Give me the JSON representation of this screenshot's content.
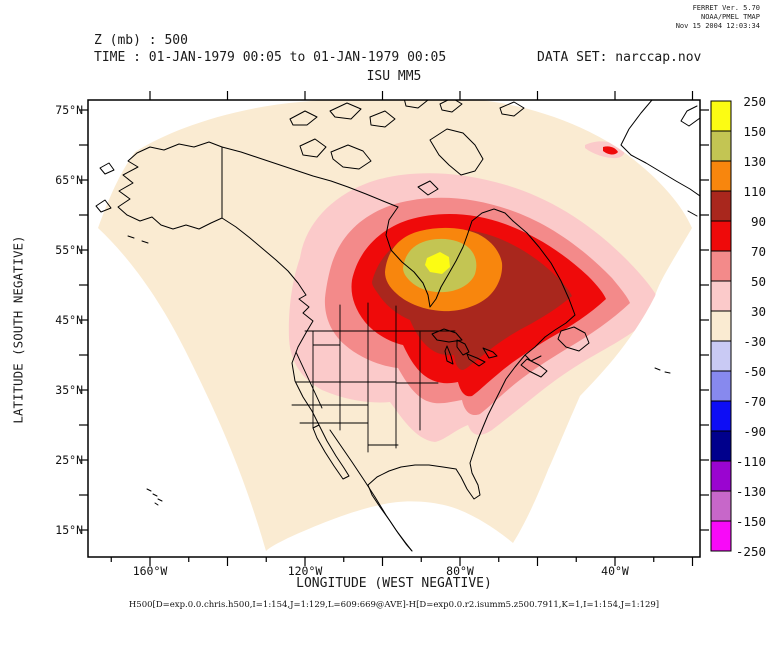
{
  "credits": {
    "line1": "FERRET Ver. 5.70",
    "line2": "NOAA/PMEL TMAP",
    "line3": "Nov 15 2004 12:03:34"
  },
  "header": {
    "variable": "Z (mb) : 500",
    "time_range": "TIME : 01-JAN-1979 00:05 to 01-JAN-1979 00:05",
    "dataset": "DATA SET: narccap.nov",
    "title": "ISU MM5"
  },
  "axes": {
    "y_title": "LATITUDE (SOUTH NEGATIVE)",
    "x_title": "LONGITUDE (WEST NEGATIVE)",
    "y_tick_labels": [
      "75°N",
      "65°N",
      "55°N",
      "45°N",
      "35°N",
      "25°N",
      "15°N"
    ],
    "x_tick_labels": [
      "160°W",
      "120°W",
      "80°W",
      "40°W"
    ]
  },
  "colorbar": {
    "labels": [
      "250",
      "150",
      "130",
      "110",
      "90",
      "70",
      "50",
      "30",
      "-30",
      "-50",
      "-70",
      "-90",
      "-110",
      "-130",
      "-150",
      "-250"
    ],
    "colors": [
      "#FCFC13",
      "#C3C553",
      "#F8860D",
      "#A9271D",
      "#EF0A0A",
      "#F38A8A",
      "#FBCACA",
      "#FAEBD2",
      "#C9CAF4",
      "#8789EE",
      "#0D0DF5",
      "#00008C",
      "#9A05D0",
      "#C767C9",
      "#F80AF8"
    ]
  },
  "footer": {
    "expression": "H500[D=exp.0.0.chris.h500,I=1:154,J=1:129,L=609:669@AVE]-H[D=exp0.0.r2.isumm5.z500.7911,K=1,I=1:154,J=1:129]"
  },
  "chart_data": {
    "type": "heatmap",
    "subtype": "filled-contour map over North America",
    "title": "ISU MM5",
    "variable": "Z (mb) : 500",
    "time": "01-JAN-1979 00:05 to 01-JAN-1979 00:05",
    "dataset": "narccap.nov",
    "xlabel": "LONGITUDE (WEST NEGATIVE)",
    "ylabel": "LATITUDE (SOUTH NEGATIVE)",
    "x_tick_labels": [
      "160°W",
      "120°W",
      "80°W",
      "40°W"
    ],
    "y_tick_labels": [
      "75°N",
      "65°N",
      "55°N",
      "45°N",
      "35°N",
      "25°N",
      "15°N"
    ],
    "x_range_approx_deg_west": [
      176,
      18
    ],
    "y_range_approx_deg_north": [
      11,
      76
    ],
    "contour_levels": [
      -250,
      -150,
      -130,
      -110,
      -90,
      -70,
      -50,
      -30,
      30,
      50,
      70,
      90,
      110,
      130,
      150,
      250
    ],
    "palette_top_to_bottom": [
      "#FCFC13",
      "#C3C553",
      "#F8860D",
      "#A9271D",
      "#EF0A0A",
      "#F38A8A",
      "#FBCACA",
      "#FAEBD2",
      "#C9CAF4",
      "#8789EE",
      "#0D0DF5",
      "#00008C",
      "#9A05D0",
      "#C767C9",
      "#F80AF8"
    ],
    "field_summary": {
      "domain_shape": "fan-shaped Lambert-conformal MM5 grid plotted on lat-lon axes; white outside domain",
      "background_band": "-30 to 30 (cream) over most of the domain",
      "maximum": {
        "approx_lon": "85°W",
        "approx_lat": "53°N",
        "band": "150 to 250 (yellow core)"
      },
      "rings_outward_from_max_bands": [
        "130-150",
        "110-130",
        "90-110",
        "70-90",
        "50-70",
        "30-50"
      ],
      "southern_lobe": "30-50 band extends south over the central U.S. plains",
      "secondary_feature": "small 30-70 streak at the northeast domain edge near 43°W, 69°N"
    },
    "legend_position": "right vertical colorbar",
    "grid": false
  }
}
